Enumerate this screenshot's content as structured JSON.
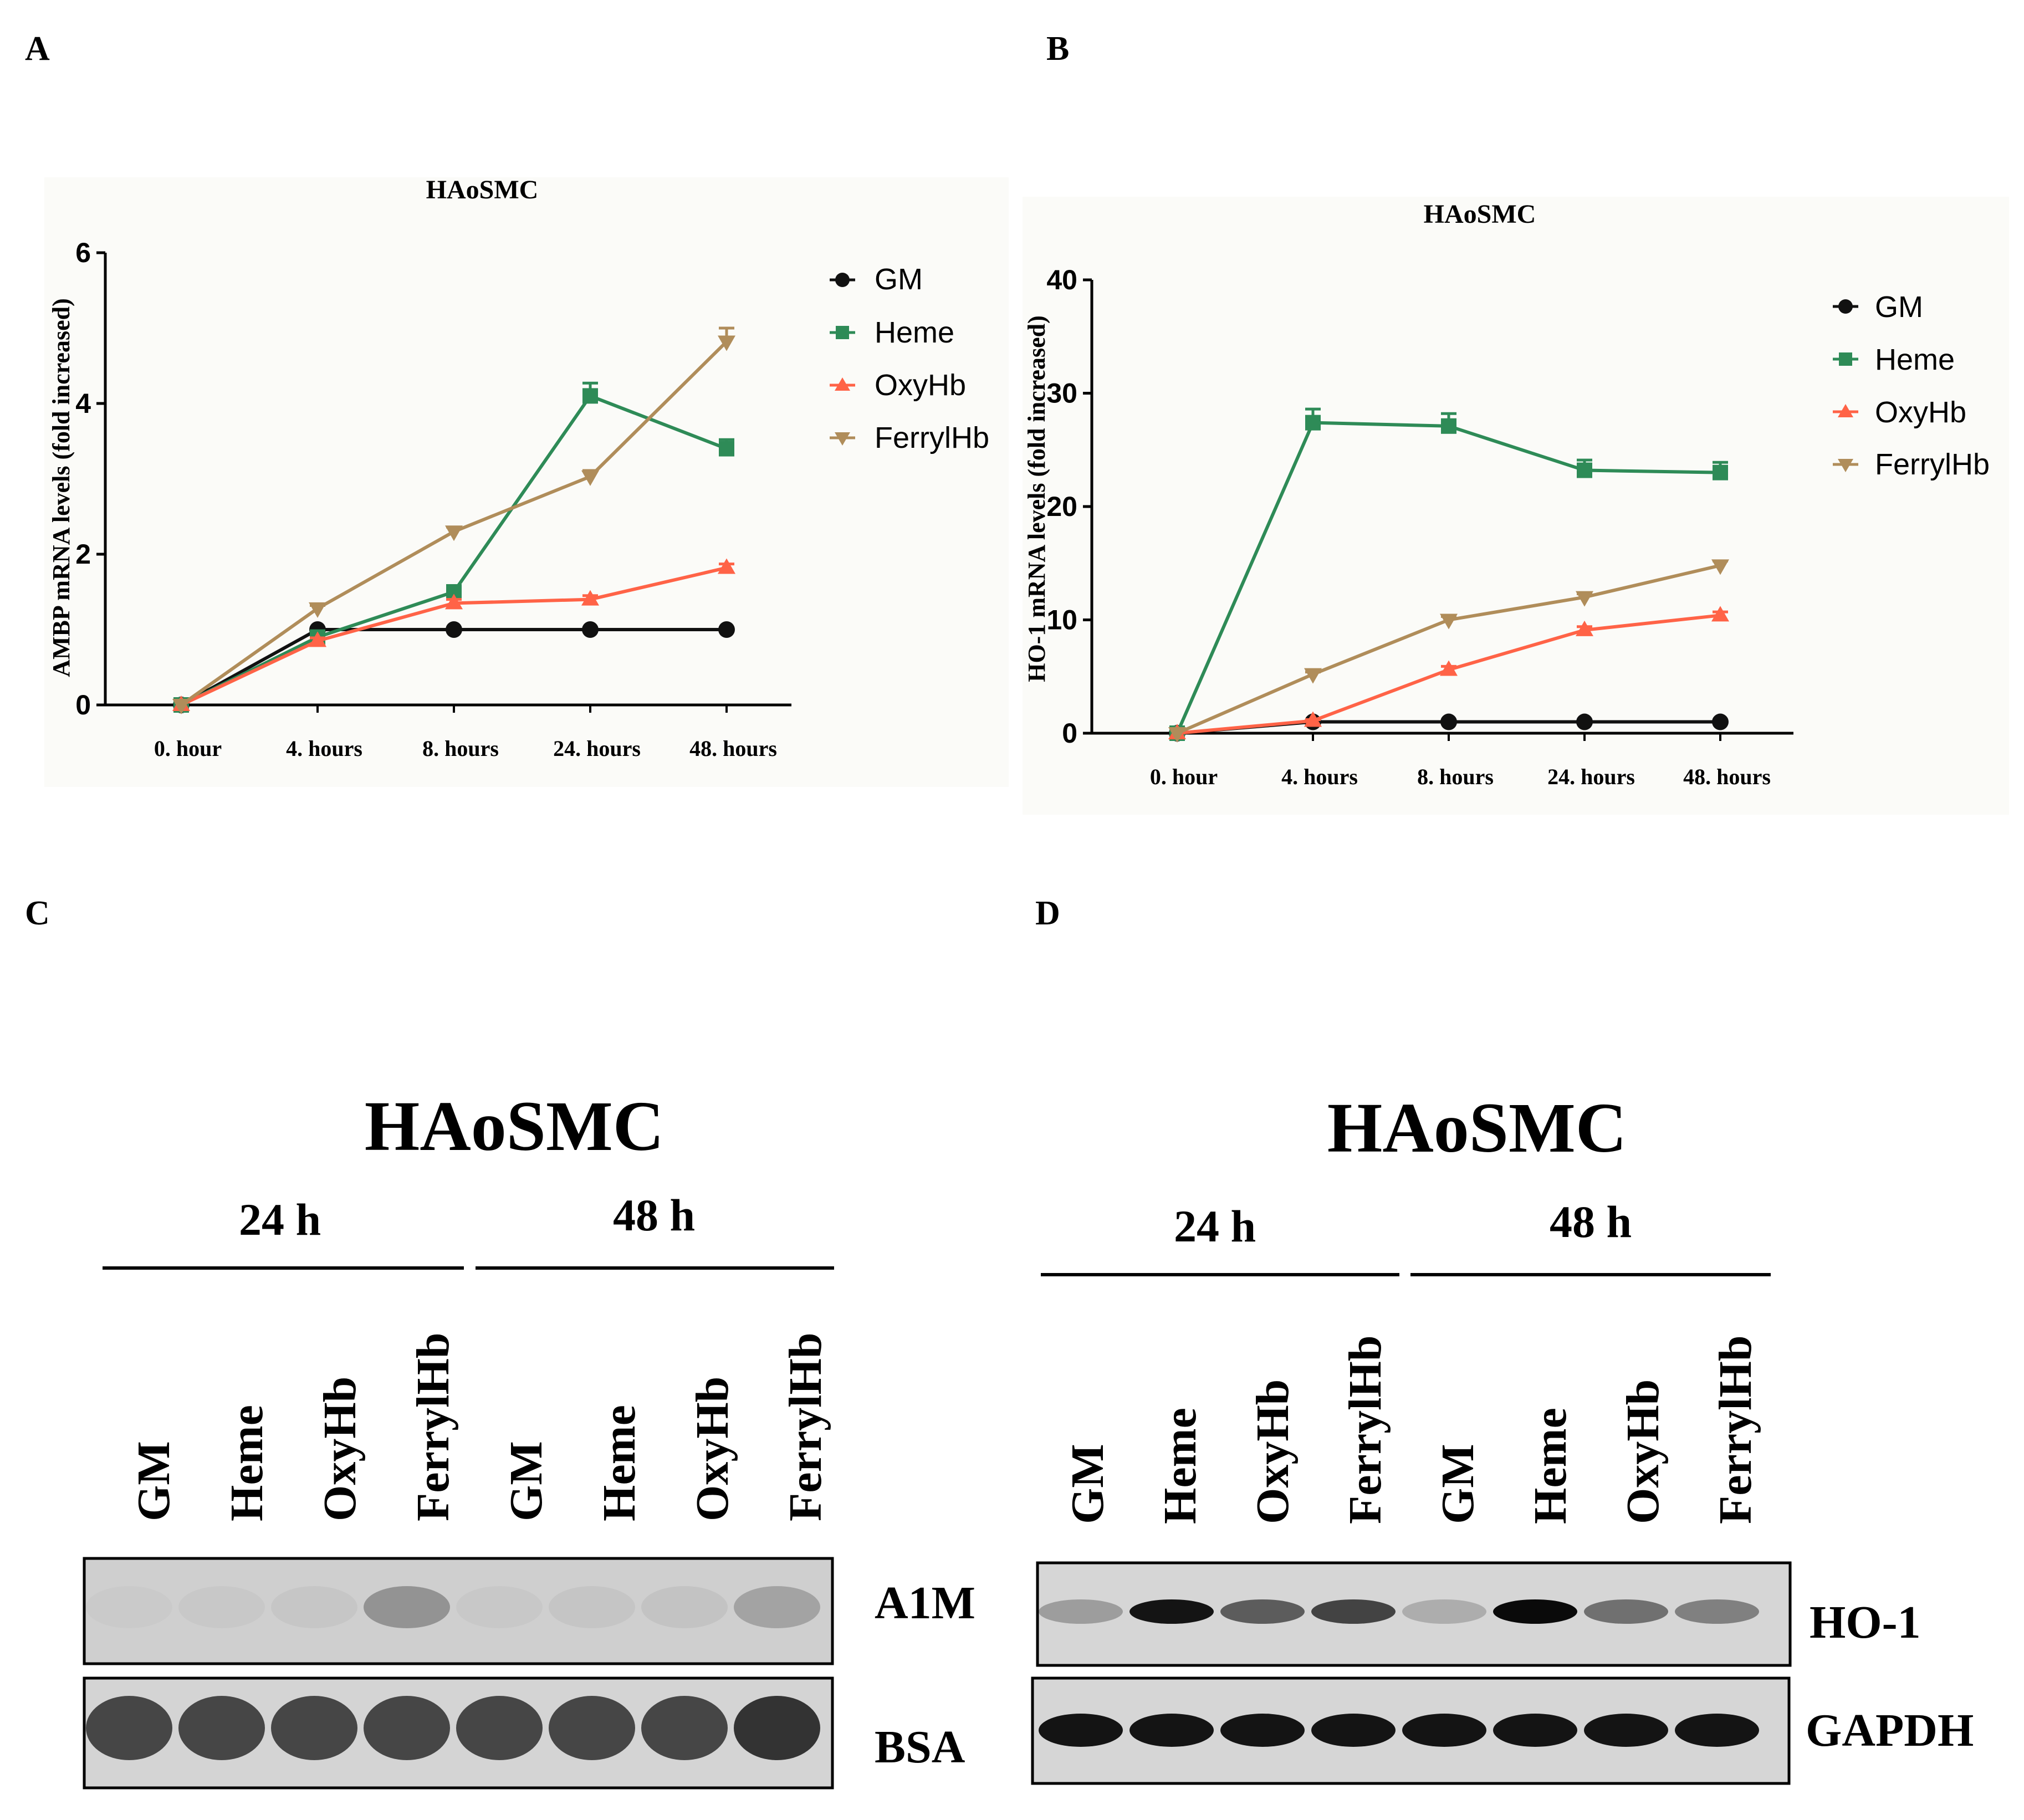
{
  "panels": {
    "A": {
      "letter": "A"
    },
    "B": {
      "letter": "B"
    },
    "C": {
      "letter": "C"
    },
    "D": {
      "letter": "D"
    }
  },
  "colors": {
    "GM": "#111111",
    "Heme": "#2e8b57",
    "OxyHb": "#ff6347",
    "FerrylHb": "#b08d5a"
  },
  "chart_data": [
    {
      "type": "line",
      "panel": "A",
      "title": "HAoSMC",
      "ylabel": "AMBP mRNA levels (fold increased)",
      "xlabel": "",
      "categories": [
        "0. hour",
        "4. hours",
        "8. hours",
        "24. hours",
        "48. hours"
      ],
      "ylim": [
        0,
        6
      ],
      "yticks": [
        0,
        2,
        4,
        6
      ],
      "legend_position": "right",
      "series": [
        {
          "name": "GM",
          "marker": "circle",
          "values": [
            0,
            1.0,
            1.0,
            1.0,
            1.0
          ],
          "errors": [
            0,
            0,
            0,
            0,
            0
          ]
        },
        {
          "name": "Heme",
          "marker": "square",
          "values": [
            0,
            0.9,
            1.5,
            4.1,
            3.4
          ],
          "errors": [
            0,
            0.05,
            0.08,
            0.17,
            0.12
          ]
        },
        {
          "name": "OxyHb",
          "marker": "triangle-up",
          "values": [
            0,
            0.85,
            1.35,
            1.4,
            1.82
          ],
          "errors": [
            0,
            0.04,
            0.05,
            0.05,
            0.05
          ]
        },
        {
          "name": "FerrylHb",
          "marker": "triangle-down",
          "values": [
            0,
            1.28,
            2.3,
            3.03,
            4.82
          ],
          "errors": [
            0,
            0.04,
            0.06,
            0.08,
            0.18
          ]
        }
      ]
    },
    {
      "type": "line",
      "panel": "B",
      "title": "HAoSMC",
      "ylabel": "HO-1 mRNA levels (fold increased)",
      "xlabel": "",
      "categories": [
        "0. hour",
        "4. hours",
        "8. hours",
        "24. hours",
        "48. hours"
      ],
      "ylim": [
        0,
        40
      ],
      "yticks": [
        0,
        10,
        20,
        30,
        40
      ],
      "legend_position": "right",
      "series": [
        {
          "name": "GM",
          "marker": "circle",
          "values": [
            0,
            1.0,
            1.0,
            1.0,
            1.0
          ],
          "errors": [
            0,
            0,
            0,
            0,
            0
          ]
        },
        {
          "name": "Heme",
          "marker": "square",
          "values": [
            0,
            27.4,
            27.1,
            23.2,
            23.0
          ],
          "errors": [
            0,
            1.2,
            1.1,
            0.9,
            0.9
          ]
        },
        {
          "name": "OxyHb",
          "marker": "triangle-up",
          "values": [
            0,
            1.1,
            5.6,
            9.1,
            10.4
          ],
          "errors": [
            0,
            0.1,
            0.3,
            0.3,
            0.3
          ]
        },
        {
          "name": "FerrylHb",
          "marker": "triangle-down",
          "values": [
            0,
            5.2,
            10.0,
            12.0,
            14.8
          ],
          "errors": [
            0,
            0.2,
            0.3,
            0.3,
            0.4
          ]
        }
      ]
    }
  ],
  "blots": {
    "C": {
      "title": "HAoSMC",
      "time_groups": [
        "24 h",
        "48 h"
      ],
      "lanes": [
        "GM",
        "Heme",
        "OxyHb",
        "FerrylHb",
        "GM",
        "Heme",
        "OxyHb",
        "FerrylHb"
      ],
      "strips": [
        {
          "label": "A1M",
          "intensities": [
            0.02,
            0.03,
            0.04,
            0.3,
            0.03,
            0.05,
            0.06,
            0.22
          ]
        },
        {
          "label": "BSA",
          "intensities": [
            0.7,
            0.7,
            0.7,
            0.7,
            0.7,
            0.7,
            0.7,
            0.8
          ]
        }
      ]
    },
    "D": {
      "title": "HAoSMC",
      "time_groups": [
        "24 h",
        "48 h"
      ],
      "lanes": [
        "GM",
        "Heme",
        "OxyHb",
        "FerrylHb",
        "GM",
        "Heme",
        "OxyHb",
        "FerrylHb"
      ],
      "strips": [
        {
          "label": "HO-1",
          "intensities": [
            0.28,
            0.95,
            0.6,
            0.72,
            0.2,
            1.0,
            0.5,
            0.42
          ]
        },
        {
          "label": "GAPDH",
          "intensities": [
            0.95,
            0.95,
            0.95,
            0.95,
            0.95,
            0.95,
            0.95,
            0.95
          ]
        }
      ]
    }
  }
}
